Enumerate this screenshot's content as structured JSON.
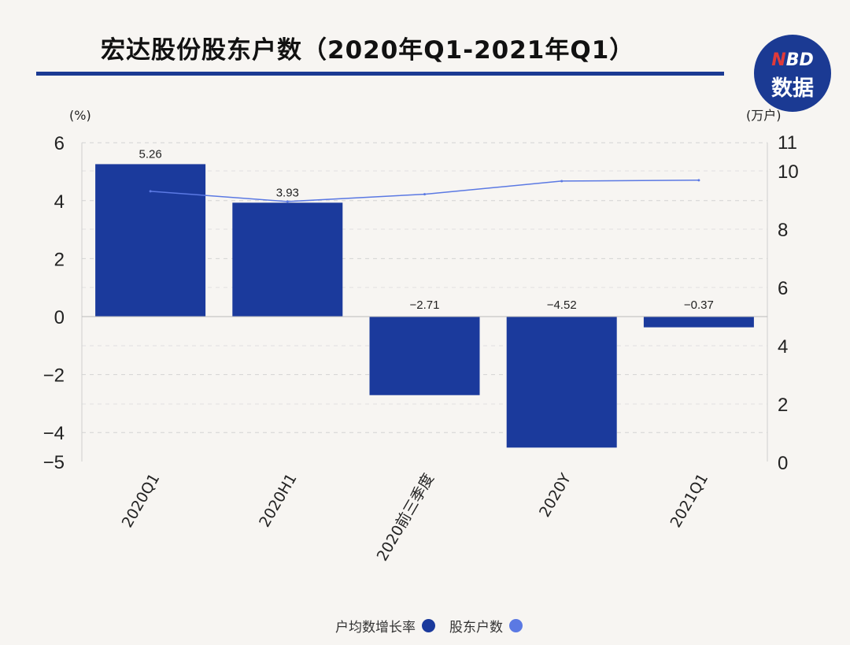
{
  "header": {
    "title": "宏达股份股东户数（2020年Q1-2021年Q1）",
    "logo_top": "BD",
    "logo_mark": "N",
    "logo_bottom": "数据"
  },
  "chart_data": {
    "type": "bar",
    "categories": [
      "2020Q1",
      "2020H1",
      "2020前三季度",
      "2020Y",
      "2021Q1"
    ],
    "series": [
      {
        "name": "户均数增长率",
        "type": "bar",
        "axis": "left",
        "values": [
          5.26,
          3.93,
          -2.71,
          -4.52,
          -0.37
        ],
        "labels": [
          "5.26",
          "3.93",
          "−2.71",
          "−4.52",
          "−0.37"
        ],
        "color": "#1b3a9c"
      },
      {
        "name": "股东户数",
        "type": "line",
        "axis": "right",
        "values": [
          9.3,
          8.95,
          9.2,
          9.65,
          9.68
        ],
        "color": "#5b79e3"
      }
    ],
    "y_left": {
      "unit": "(%)",
      "range": [
        -5,
        6
      ],
      "ticks": [
        6,
        4,
        2,
        0,
        -2,
        -4,
        -5
      ],
      "tick_labels": [
        "6",
        "4",
        "2",
        "0",
        "−2",
        "−4",
        "−5"
      ]
    },
    "y_right": {
      "unit": "(万户)",
      "range": [
        0,
        11
      ],
      "ticks": [
        11,
        10,
        8,
        6,
        4,
        2,
        0
      ],
      "tick_labels": [
        "11",
        "10",
        "8",
        "6",
        "4",
        "2",
        "0"
      ]
    },
    "grid": "dashed",
    "legend_position": "bottom-center"
  }
}
